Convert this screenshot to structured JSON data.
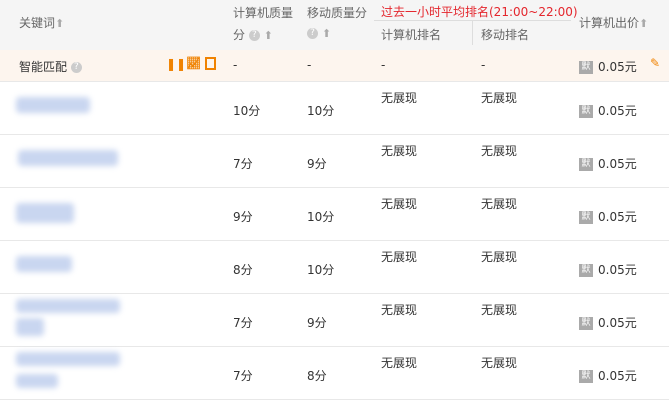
{
  "header": {
    "keyword": "关键词",
    "pc_quality_1": "计算机质量",
    "pc_quality_2": "分",
    "mobile_quality": "移动质量分",
    "rank_group": "过去一小时平均排名(21:00~22:00)",
    "pc_rank": "计算机排名",
    "mobile_rank": "移动排名",
    "pc_bid": "计算机出价"
  },
  "colors": {
    "rank_group": "#e4262d",
    "accent": "#f08200",
    "smart_bg": "#fdf5ee"
  },
  "smart": {
    "label": "智能匹配",
    "pc_quality": "-",
    "mobile_quality": "-",
    "pc_rank": "-",
    "mobile_rank": "-",
    "badge": "默",
    "bid": "0.05元"
  },
  "rows": [
    {
      "pc_quality": "10分",
      "mobile_quality": "10分",
      "pc_rank": "无展现",
      "mobile_rank": "无展现",
      "badge": "默",
      "bid": "0.05元"
    },
    {
      "pc_quality": "7分",
      "mobile_quality": "9分",
      "pc_rank": "无展现",
      "mobile_rank": "无展现",
      "badge": "默",
      "bid": "0.05元"
    },
    {
      "pc_quality": "9分",
      "mobile_quality": "10分",
      "pc_rank": "无展现",
      "mobile_rank": "无展现",
      "badge": "默",
      "bid": "0.05元"
    },
    {
      "pc_quality": "8分",
      "mobile_quality": "10分",
      "pc_rank": "无展现",
      "mobile_rank": "无展现",
      "badge": "默",
      "bid": "0.05元"
    },
    {
      "pc_quality": "7分",
      "mobile_quality": "9分",
      "pc_rank": "无展现",
      "mobile_rank": "无展现",
      "badge": "默",
      "bid": "0.05元"
    },
    {
      "pc_quality": "7分",
      "mobile_quality": "8分",
      "pc_rank": "无展现",
      "mobile_rank": "无展现",
      "badge": "默",
      "bid": "0.05元"
    }
  ]
}
